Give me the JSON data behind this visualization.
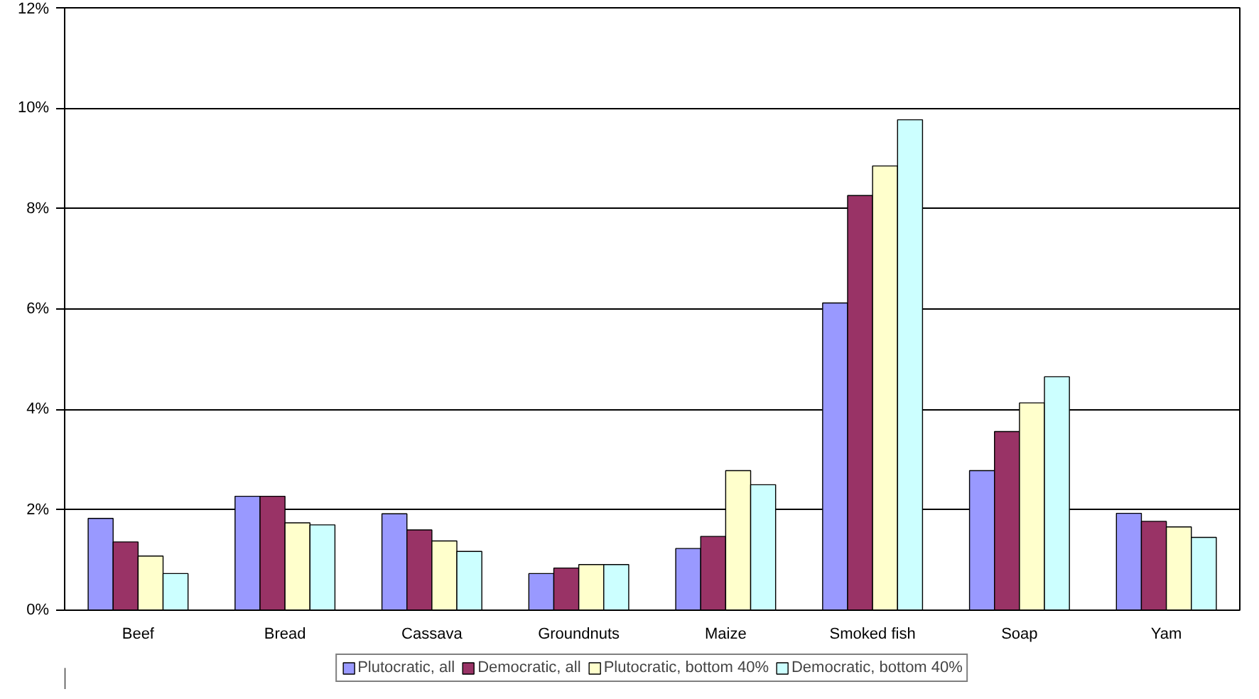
{
  "chart_data": {
    "type": "bar",
    "categories": [
      "Beef",
      "Bread",
      "Cassava",
      "Groundnuts",
      "Maize",
      "Smoked fish",
      "Soap",
      "Yam"
    ],
    "series": [
      {
        "name": "Plutocratic, all",
        "color": "#9999ff",
        "values": [
          1.83,
          2.27,
          1.92,
          0.73,
          1.23,
          6.12,
          2.78,
          1.93
        ]
      },
      {
        "name": "Democratic, all",
        "color": "#993366",
        "values": [
          1.36,
          2.27,
          1.6,
          0.84,
          1.47,
          8.26,
          3.56,
          1.77
        ]
      },
      {
        "name": "Plutocratic, bottom 40%",
        "color": "#ffffcc",
        "values": [
          1.08,
          1.74,
          1.38,
          0.91,
          2.78,
          8.85,
          4.13,
          1.66
        ]
      },
      {
        "name": "Democratic, bottom 40%",
        "color": "#ccffff",
        "values": [
          0.73,
          1.7,
          1.17,
          0.91,
          2.5,
          9.77,
          4.65,
          1.45
        ]
      }
    ],
    "ylim": [
      0,
      12
    ],
    "yticks": [
      {
        "value": 0,
        "label": "0%"
      },
      {
        "value": 2,
        "label": "2%"
      },
      {
        "value": 4,
        "label": "4%"
      },
      {
        "value": 6,
        "label": "6%"
      },
      {
        "value": 8,
        "label": "8%"
      },
      {
        "value": 10,
        "label": "10%"
      },
      {
        "value": 12,
        "label": "12%"
      }
    ],
    "grid": "y",
    "legend": "bottom"
  }
}
